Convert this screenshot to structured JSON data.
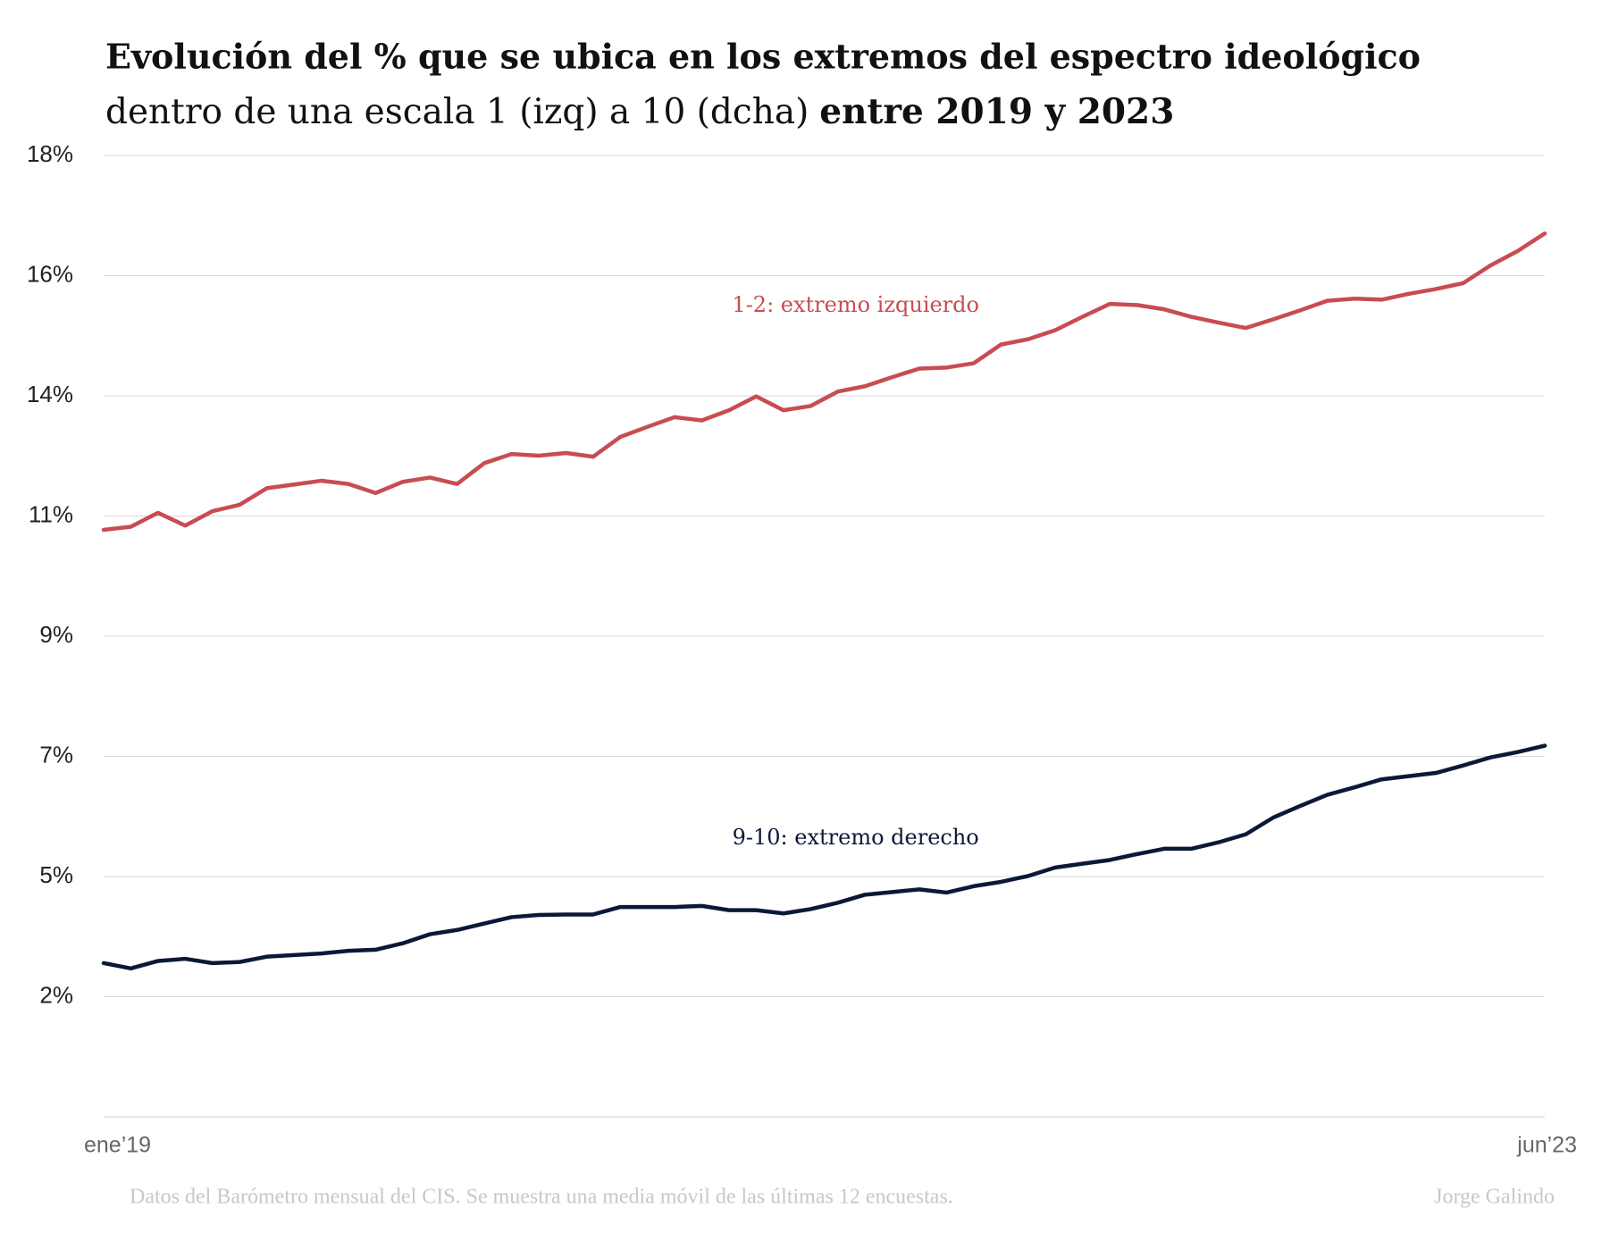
{
  "chart_data": {
    "type": "line",
    "title": "Evolución del % que se ubica en los extremos del espectro ideológico",
    "subtitle": "dentro de una escala 1 (izq) a 10 (dcha)",
    "subtitle_bold": "entre 2019 y 2023",
    "source": "Datos del Barómetro mensual del CIS. Se muestra una media móvil de las últimas 12 encuestas.",
    "author": "Jorge Galindo",
    "categories": [
      "ene’19",
      null,
      null,
      null,
      null,
      null,
      null,
      null,
      null,
      null,
      null,
      null,
      null,
      null,
      null,
      null,
      null,
      null,
      null,
      null,
      null,
      null,
      null,
      null,
      null,
      null,
      null,
      null,
      null,
      null,
      null,
      null,
      null,
      null,
      null,
      null,
      null,
      null,
      null,
      null,
      null,
      null,
      null,
      null,
      null,
      null,
      null,
      null,
      null,
      null,
      null,
      null,
      null,
      "jun’23"
    ],
    "series": [
      {
        "name": "1-2: extremo izquierdo",
        "color": "#c84c51",
        "values": [
          10.99,
          11.05,
          11.31,
          11.07,
          11.34,
          11.46,
          11.77,
          11.84,
          11.91,
          11.85,
          11.68,
          11.89,
          11.97,
          11.85,
          12.24,
          12.41,
          12.38,
          12.43,
          12.36,
          12.73,
          12.92,
          13.1,
          13.04,
          13.23,
          13.49,
          13.23,
          13.31,
          13.58,
          13.68,
          13.85,
          14.01,
          14.03,
          14.11,
          14.46,
          14.56,
          14.73,
          14.98,
          15.22,
          15.2,
          15.12,
          14.98,
          14.87,
          14.77,
          14.93,
          15.1,
          15.28,
          15.32,
          15.3,
          15.41,
          15.5,
          15.61,
          15.94,
          16.21,
          16.54
        ]
      },
      {
        "name": "9-10: extremo derecho",
        "color": "#0c1838",
        "values": [
          2.88,
          2.78,
          2.92,
          2.96,
          2.88,
          2.9,
          3.0,
          3.03,
          3.06,
          3.11,
          3.13,
          3.25,
          3.42,
          3.5,
          3.62,
          3.74,
          3.78,
          3.79,
          3.79,
          3.93,
          3.93,
          3.93,
          3.95,
          3.87,
          3.87,
          3.81,
          3.89,
          4.01,
          4.16,
          4.21,
          4.26,
          4.2,
          4.32,
          4.4,
          4.51,
          4.67,
          4.74,
          4.81,
          4.92,
          5.02,
          5.02,
          5.14,
          5.29,
          5.6,
          5.82,
          6.03,
          6.17,
          6.32,
          6.38,
          6.44,
          6.58,
          6.73,
          6.83,
          6.95
        ]
      }
    ],
    "ylim": [
      0,
      18
    ],
    "yticks": [
      {
        "value": 2.25,
        "label": "2%"
      },
      {
        "value": 4.5,
        "label": "5%"
      },
      {
        "value": 6.75,
        "label": "7%"
      },
      {
        "value": 9,
        "label": "9%"
      },
      {
        "value": 11.25,
        "label": "11%"
      },
      {
        "value": 13.5,
        "label": "14%"
      },
      {
        "value": 15.75,
        "label": "16%"
      },
      {
        "value": 18,
        "label": "18%"
      }
    ],
    "grid": true
  }
}
